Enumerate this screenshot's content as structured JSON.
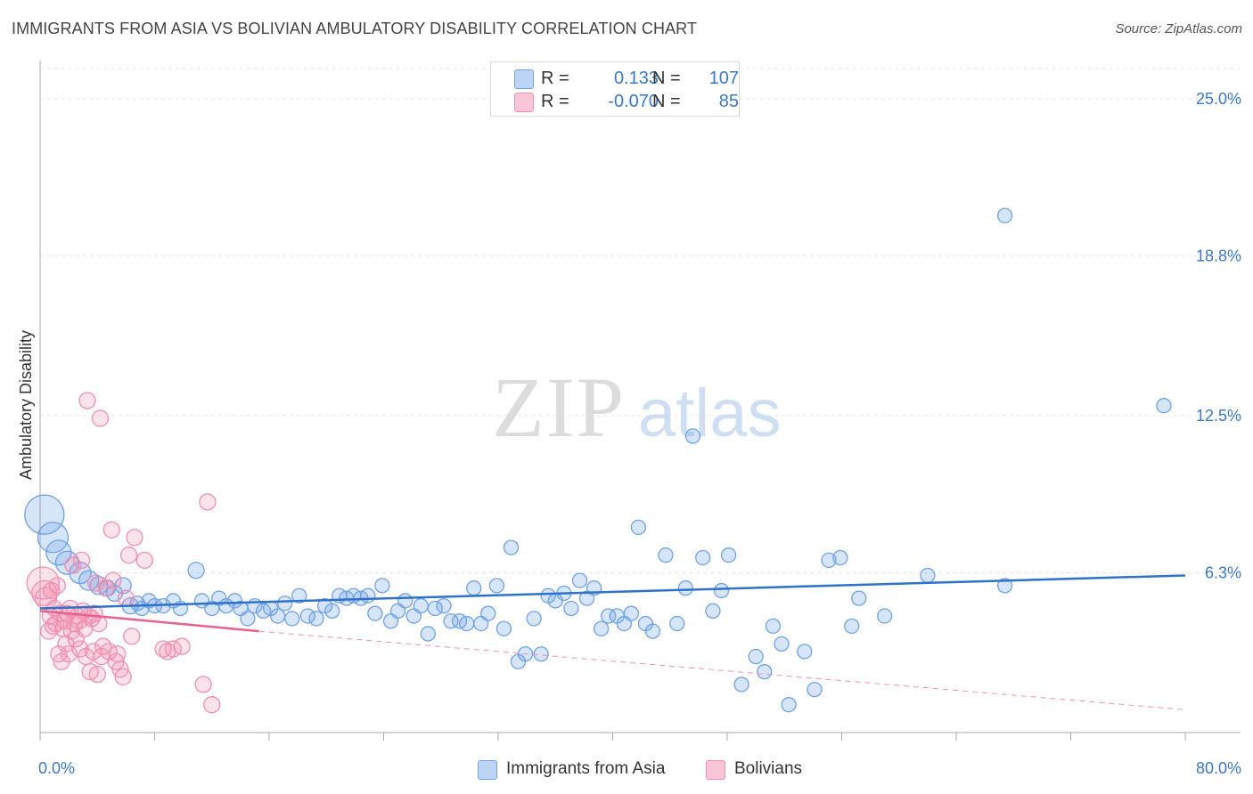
{
  "title": "IMMIGRANTS FROM ASIA VS BOLIVIAN AMBULATORY DISABILITY CORRELATION CHART",
  "source": "Source: ZipAtlas.com",
  "watermark": {
    "zip": "ZIP",
    "atlas": "atlas"
  },
  "legend": {
    "r_label": "R =",
    "n_label": "N =",
    "series": [
      {
        "name": "Immigrants from Asia",
        "r": "0.133",
        "n": "107",
        "color": "#6fa2e6"
      },
      {
        "name": "Bolivians",
        "r": "-0.070",
        "n": "85",
        "color": "#f08fb0"
      }
    ]
  },
  "chart_data": {
    "type": "scatter",
    "title": "IMMIGRANTS FROM ASIA VS BOLIVIAN AMBULATORY DISABILITY CORRELATION CHART",
    "xlabel": "",
    "ylabel": "Ambulatory Disability",
    "xlim": [
      0,
      80
    ],
    "ylim": [
      0,
      26.2
    ],
    "x_tick_labels": [
      "0.0%",
      "80.0%"
    ],
    "y_ticks": [
      6.3,
      12.5,
      18.8,
      25.0
    ],
    "y_tick_labels": [
      "6.3%",
      "12.5%",
      "18.8%",
      "25.0%"
    ],
    "grid": true,
    "series": [
      {
        "name": "Immigrants from Asia",
        "color": "#6fa2e6",
        "trend": {
          "x0": 0,
          "y0": 4.9,
          "x1": 80,
          "y1": 6.2
        },
        "points": [
          [
            0.3,
            8.6,
            22
          ],
          [
            0.9,
            7.7,
            17
          ],
          [
            1.3,
            7.1,
            14
          ],
          [
            1.9,
            6.7,
            13
          ],
          [
            2.8,
            6.3,
            12
          ],
          [
            3.4,
            6.0,
            11
          ],
          [
            4.1,
            5.8,
            10
          ],
          [
            4.7,
            5.7,
            9
          ],
          [
            5.2,
            5.5,
            9
          ],
          [
            5.8,
            5.8,
            9
          ],
          [
            6.3,
            5.0,
            9
          ],
          [
            6.8,
            5.1,
            8
          ],
          [
            7.1,
            4.9,
            8
          ],
          [
            7.6,
            5.2,
            8
          ],
          [
            8.0,
            5.0,
            8
          ],
          [
            8.6,
            5.0,
            8
          ],
          [
            9.3,
            5.2,
            8
          ],
          [
            9.8,
            4.9,
            8
          ],
          [
            10.9,
            6.4,
            9
          ],
          [
            11.3,
            5.2,
            8
          ],
          [
            12.0,
            4.9,
            8
          ],
          [
            12.5,
            5.3,
            8
          ],
          [
            13.0,
            5.0,
            8
          ],
          [
            13.6,
            5.2,
            8
          ],
          [
            14.0,
            4.9,
            8
          ],
          [
            14.5,
            4.5,
            8
          ],
          [
            15.0,
            5.0,
            8
          ],
          [
            15.6,
            4.8,
            8
          ],
          [
            16.1,
            4.9,
            8
          ],
          [
            16.6,
            4.6,
            8
          ],
          [
            17.1,
            5.1,
            8
          ],
          [
            17.6,
            4.5,
            8
          ],
          [
            18.1,
            5.4,
            8
          ],
          [
            18.7,
            4.6,
            8
          ],
          [
            19.3,
            4.5,
            8
          ],
          [
            19.9,
            5.0,
            8
          ],
          [
            20.4,
            4.8,
            8
          ],
          [
            20.9,
            5.4,
            8
          ],
          [
            21.4,
            5.3,
            8
          ],
          [
            21.9,
            5.4,
            8
          ],
          [
            22.4,
            5.3,
            8
          ],
          [
            22.9,
            5.4,
            8
          ],
          [
            23.4,
            4.7,
            8
          ],
          [
            23.9,
            5.8,
            8
          ],
          [
            24.5,
            4.4,
            8
          ],
          [
            25.0,
            4.8,
            8
          ],
          [
            25.5,
            5.2,
            8
          ],
          [
            26.1,
            4.6,
            8
          ],
          [
            26.6,
            5.0,
            8
          ],
          [
            27.1,
            3.9,
            8
          ],
          [
            27.6,
            4.9,
            8
          ],
          [
            28.2,
            5.0,
            8
          ],
          [
            28.7,
            4.4,
            8
          ],
          [
            29.3,
            4.4,
            8
          ],
          [
            29.8,
            4.3,
            8
          ],
          [
            30.3,
            5.7,
            8
          ],
          [
            30.8,
            4.3,
            8
          ],
          [
            31.3,
            4.7,
            8
          ],
          [
            31.9,
            5.8,
            8
          ],
          [
            32.4,
            4.1,
            8
          ],
          [
            32.9,
            7.3,
            8
          ],
          [
            33.4,
            2.8,
            8
          ],
          [
            33.9,
            3.1,
            8
          ],
          [
            34.5,
            4.5,
            8
          ],
          [
            35.0,
            3.1,
            8
          ],
          [
            35.5,
            5.4,
            8
          ],
          [
            36.0,
            5.2,
            8
          ],
          [
            36.6,
            5.5,
            8
          ],
          [
            37.1,
            4.9,
            8
          ],
          [
            37.7,
            6.0,
            8
          ],
          [
            38.2,
            5.3,
            8
          ],
          [
            38.7,
            5.7,
            8
          ],
          [
            39.2,
            4.1,
            8
          ],
          [
            39.7,
            4.6,
            8
          ],
          [
            40.3,
            4.6,
            8
          ],
          [
            40.8,
            4.3,
            8
          ],
          [
            41.3,
            4.7,
            8
          ],
          [
            41.8,
            8.1,
            8
          ],
          [
            42.3,
            4.3,
            8
          ],
          [
            42.8,
            4.0,
            8
          ],
          [
            43.7,
            7.0,
            8
          ],
          [
            44.5,
            4.3,
            8
          ],
          [
            45.1,
            5.7,
            8
          ],
          [
            45.6,
            11.7,
            8
          ],
          [
            46.3,
            6.9,
            8
          ],
          [
            47.0,
            4.8,
            8
          ],
          [
            47.6,
            5.6,
            8
          ],
          [
            48.1,
            7.0,
            8
          ],
          [
            49.0,
            1.9,
            8
          ],
          [
            50.0,
            3.0,
            8
          ],
          [
            50.6,
            2.4,
            8
          ],
          [
            51.2,
            4.2,
            8
          ],
          [
            51.8,
            3.5,
            8
          ],
          [
            52.3,
            1.1,
            8
          ],
          [
            53.4,
            3.2,
            8
          ],
          [
            54.1,
            1.7,
            8
          ],
          [
            55.1,
            6.8,
            8
          ],
          [
            55.9,
            6.9,
            8
          ],
          [
            56.7,
            4.2,
            8
          ],
          [
            57.2,
            5.3,
            8
          ],
          [
            59.0,
            4.6,
            8
          ],
          [
            62.0,
            6.2,
            8
          ],
          [
            67.4,
            5.8,
            8
          ],
          [
            67.4,
            20.4,
            8
          ],
          [
            78.5,
            12.9,
            8
          ]
        ]
      },
      {
        "name": "Bolivians",
        "color": "#f08fb0",
        "trend": {
          "x0": 0,
          "y0": 4.8,
          "x1": 15.3,
          "y1": 4.0,
          "dash_x1": 80,
          "dash_y1": 0.9
        },
        "points": [
          [
            0.2,
            5.9,
            18
          ],
          [
            0.3,
            5.5,
            14
          ],
          [
            0.4,
            5.3,
            12
          ],
          [
            0.6,
            4.0,
            9
          ],
          [
            0.7,
            4.6,
            9
          ],
          [
            0.8,
            5.6,
            9
          ],
          [
            0.9,
            4.2,
            9
          ],
          [
            1.0,
            4.9,
            9
          ],
          [
            1.1,
            4.3,
            9
          ],
          [
            1.2,
            5.8,
            9
          ],
          [
            1.3,
            3.1,
            9
          ],
          [
            1.4,
            4.7,
            9
          ],
          [
            1.5,
            2.8,
            9
          ],
          [
            1.6,
            4.1,
            9
          ],
          [
            1.7,
            4.4,
            9
          ],
          [
            1.8,
            3.5,
            9
          ],
          [
            1.9,
            4.7,
            9
          ],
          [
            2.0,
            3.1,
            9
          ],
          [
            2.1,
            4.9,
            9
          ],
          [
            2.2,
            4.0,
            9
          ],
          [
            2.3,
            6.6,
            9
          ],
          [
            2.4,
            4.3,
            9
          ],
          [
            2.5,
            3.7,
            9
          ],
          [
            2.6,
            4.6,
            9
          ],
          [
            2.7,
            4.4,
            9
          ],
          [
            2.8,
            3.3,
            9
          ],
          [
            2.9,
            6.8,
            9
          ],
          [
            3.0,
            4.8,
            9
          ],
          [
            3.1,
            4.1,
            9
          ],
          [
            3.2,
            3.0,
            9
          ],
          [
            3.3,
            13.1,
            9
          ],
          [
            3.4,
            4.6,
            9
          ],
          [
            3.5,
            2.4,
            9
          ],
          [
            3.6,
            4.5,
            9
          ],
          [
            3.7,
            3.2,
            9
          ],
          [
            3.8,
            4.7,
            9
          ],
          [
            3.9,
            5.9,
            9
          ],
          [
            4.0,
            2.3,
            9
          ],
          [
            4.1,
            4.3,
            9
          ],
          [
            4.2,
            12.4,
            9
          ],
          [
            4.3,
            3.0,
            9
          ],
          [
            4.4,
            3.4,
            9
          ],
          [
            4.6,
            5.7,
            9
          ],
          [
            4.8,
            3.2,
            9
          ],
          [
            5.0,
            8.0,
            9
          ],
          [
            5.1,
            6.0,
            9
          ],
          [
            5.3,
            2.8,
            9
          ],
          [
            5.4,
            3.1,
            9
          ],
          [
            5.6,
            2.5,
            9
          ],
          [
            5.8,
            2.2,
            9
          ],
          [
            6.0,
            5.3,
            9
          ],
          [
            6.2,
            7.0,
            9
          ],
          [
            6.4,
            3.8,
            9
          ],
          [
            6.6,
            7.7,
            9
          ],
          [
            7.3,
            6.8,
            9
          ],
          [
            8.6,
            3.3,
            9
          ],
          [
            8.9,
            3.2,
            9
          ],
          [
            9.3,
            3.3,
            9
          ],
          [
            9.9,
            3.4,
            9
          ],
          [
            11.4,
            1.9,
            9
          ],
          [
            11.7,
            9.1,
            9
          ],
          [
            12.0,
            1.1,
            9
          ]
        ]
      }
    ]
  }
}
